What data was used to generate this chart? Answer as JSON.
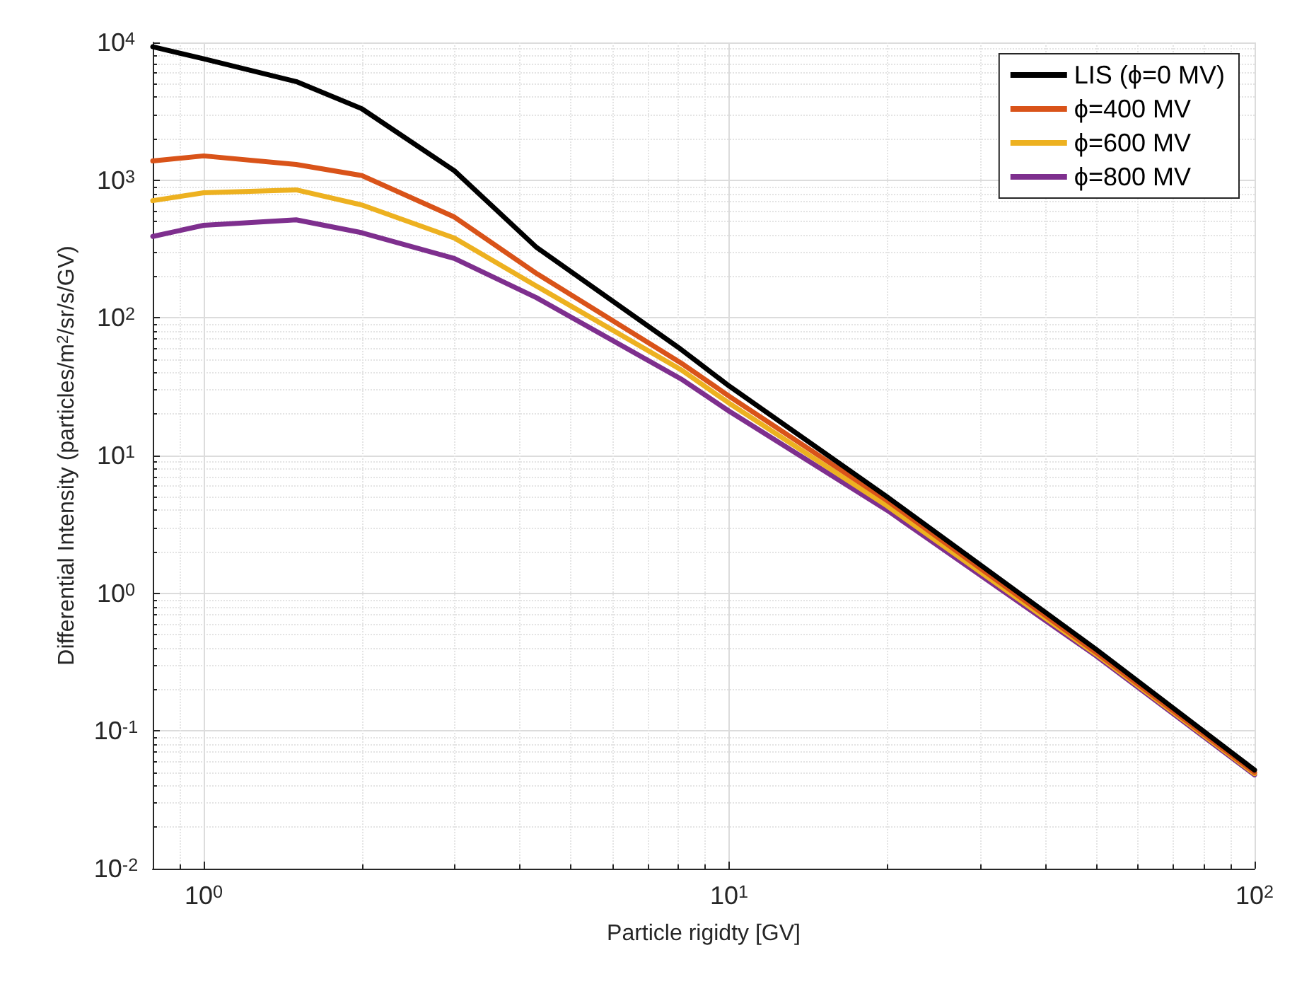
{
  "chart_data": {
    "type": "line",
    "xlabel": "Particle rigidty [GV]",
    "ylabel": "Differential Intensity (particles/m$^{2}$/sr/s/GV)",
    "x": [
      0.8,
      1,
      1.5,
      2,
      3,
      4.3,
      8.1,
      10,
      20,
      50,
      100
    ],
    "series": [
      {
        "name": "LIS (ϕ=0 MV)",
        "color": "#000000",
        "values": [
          9300,
          7600,
          5200,
          3300,
          1170,
          325,
          59,
          32,
          5.0,
          0.39,
          0.052
        ]
      },
      {
        "name": "ϕ=400 MV",
        "color": "#d95319",
        "values": [
          1380,
          1500,
          1300,
          1080,
          540,
          210,
          47,
          27,
          4.7,
          0.37,
          0.05
        ]
      },
      {
        "name": "ϕ=600 MV",
        "color": "#edb120",
        "values": [
          710,
          810,
          850,
          660,
          380,
          170,
          42,
          24,
          4.3,
          0.36,
          0.049
        ]
      },
      {
        "name": "ϕ=800 MV",
        "color": "#7e2f8e",
        "values": [
          390,
          470,
          515,
          415,
          270,
          140,
          36,
          21,
          4.0,
          0.35,
          0.048
        ]
      }
    ],
    "log": "xy",
    "xlim": [
      0.8,
      100
    ],
    "xticks": [
      {
        "value": 1,
        "label": "10$^{0}$"
      },
      {
        "value": 10,
        "label": "10$^{1}$"
      },
      {
        "value": 100,
        "label": "10$^{2}$"
      }
    ],
    "ylim": [
      0.01,
      10000
    ],
    "yticks": [
      {
        "value": 0.01,
        "label": "10$^{-2}$"
      },
      {
        "value": 0.1,
        "label": "10$^{-1}$"
      },
      {
        "value": 1,
        "label": "10$^{0}$"
      },
      {
        "value": 10,
        "label": "10$^{1}$"
      },
      {
        "value": 100,
        "label": "10$^{2}$"
      },
      {
        "value": 1000,
        "label": "10$^{3}$"
      },
      {
        "value": 10000,
        "label": "10$^{4}$"
      }
    ],
    "grid": true,
    "legend": "top right",
    "marker": "none",
    "line_style": "solid"
  }
}
